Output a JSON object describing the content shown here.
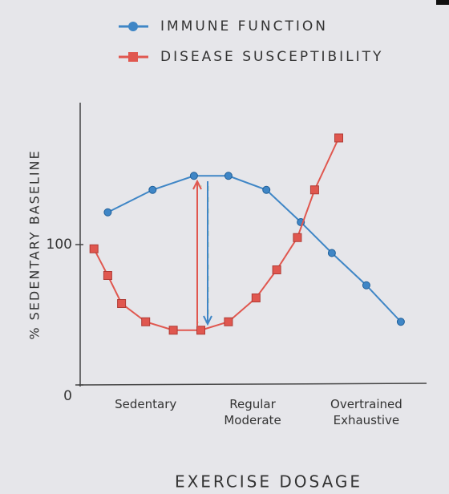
{
  "chart_data": {
    "type": "line",
    "xlabel": "EXERCISE DOSAGE",
    "ylabel": "% SEDENTARY BASELINE",
    "xlim": [
      0,
      100
    ],
    "xticks": [
      {
        "value": 19,
        "label": "Sedentary"
      },
      {
        "value": 50,
        "label": "Regular Moderate"
      },
      {
        "value": 83,
        "label": "Overtrained Exhaustive"
      }
    ],
    "ylim": [
      0,
      200
    ],
    "yticks": [
      0,
      100
    ],
    "legend": "top",
    "series": [
      {
        "name": "IMMUNE FUNCTION",
        "color": "#3f86c6",
        "marker": "circle",
        "x": [
          8,
          21,
          33,
          43,
          54,
          64,
          73,
          83,
          93
        ],
        "values": [
          123,
          139,
          149,
          149,
          139,
          116,
          94,
          71,
          45
        ]
      },
      {
        "name": "DISEASE SUSCEPTIBILITY",
        "color": "#e0574f",
        "marker": "square",
        "x": [
          4,
          8,
          12,
          19,
          27,
          35,
          43,
          51,
          57,
          63,
          68,
          75
        ],
        "values": [
          97,
          78,
          58,
          45,
          39,
          39,
          45,
          62,
          82,
          105,
          139,
          176
        ]
      }
    ]
  }
}
